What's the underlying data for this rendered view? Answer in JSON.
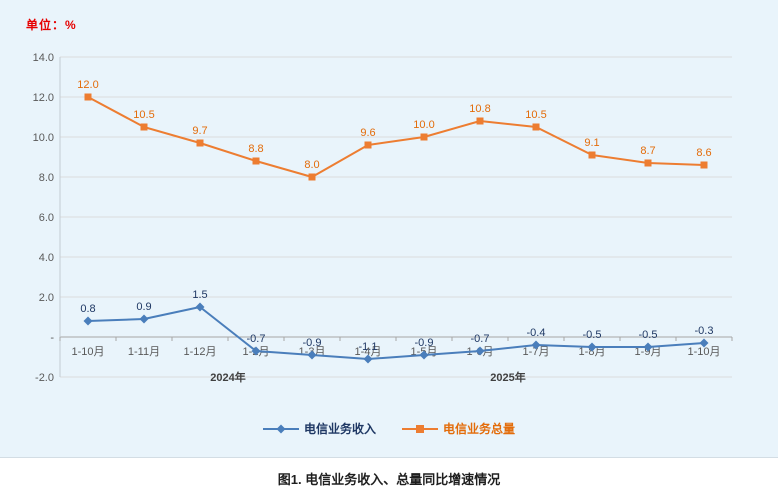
{
  "caption": "图1. 电信业务收入、总量同比增速情况",
  "chart_data": {
    "type": "line",
    "title": "图1. 电信业务收入、总量同比增速情况",
    "unit": "单位：%",
    "xlabel": "",
    "ylabel": "%",
    "ylim": [
      -2,
      14
    ],
    "grid": true,
    "legend_position": "bottom",
    "categories": [
      "1-10月",
      "1-11月",
      "1-12月",
      "1-2月",
      "1-3月",
      "1-4月",
      "1-5月",
      "1-6月",
      "1-7月",
      "1-8月",
      "1-9月",
      "1-10月"
    ],
    "year_groups": [
      {
        "label": "2024年",
        "center_index": 2.5
      },
      {
        "label": "2025年",
        "center_index": 7.5
      }
    ],
    "y_axis": {
      "max": 14,
      "min": -2,
      "step": 2,
      "tick_labels": [
        "14.0",
        "12.0",
        "10.0",
        "8.0",
        "6.0",
        "4.0",
        "2.0",
        "-",
        "-2.0"
      ]
    },
    "series": [
      {
        "key": "revenue",
        "name": "电信业务收入",
        "marker": "diamond",
        "color": "#4a7ebb",
        "label_color": "#1f3864",
        "values": [
          0.8,
          0.9,
          1.5,
          -0.7,
          -0.9,
          -1.1,
          -0.9,
          -0.7,
          -0.4,
          -0.5,
          -0.5,
          -0.3
        ]
      },
      {
        "key": "volume",
        "name": "电信业务总量",
        "marker": "square",
        "color": "#ed7d31",
        "label_color": "#e36c0a",
        "values": [
          12.0,
          10.5,
          9.7,
          8.8,
          8.0,
          9.6,
          10.0,
          10.8,
          10.5,
          9.1,
          8.7,
          8.6
        ]
      }
    ],
    "colors": {
      "background_panel": "#e9f4fb",
      "gridline": "#dcdcdc",
      "zero_axis": "#a6a6a6",
      "axis_text": "#595959",
      "unit_label": "#e60000"
    }
  }
}
